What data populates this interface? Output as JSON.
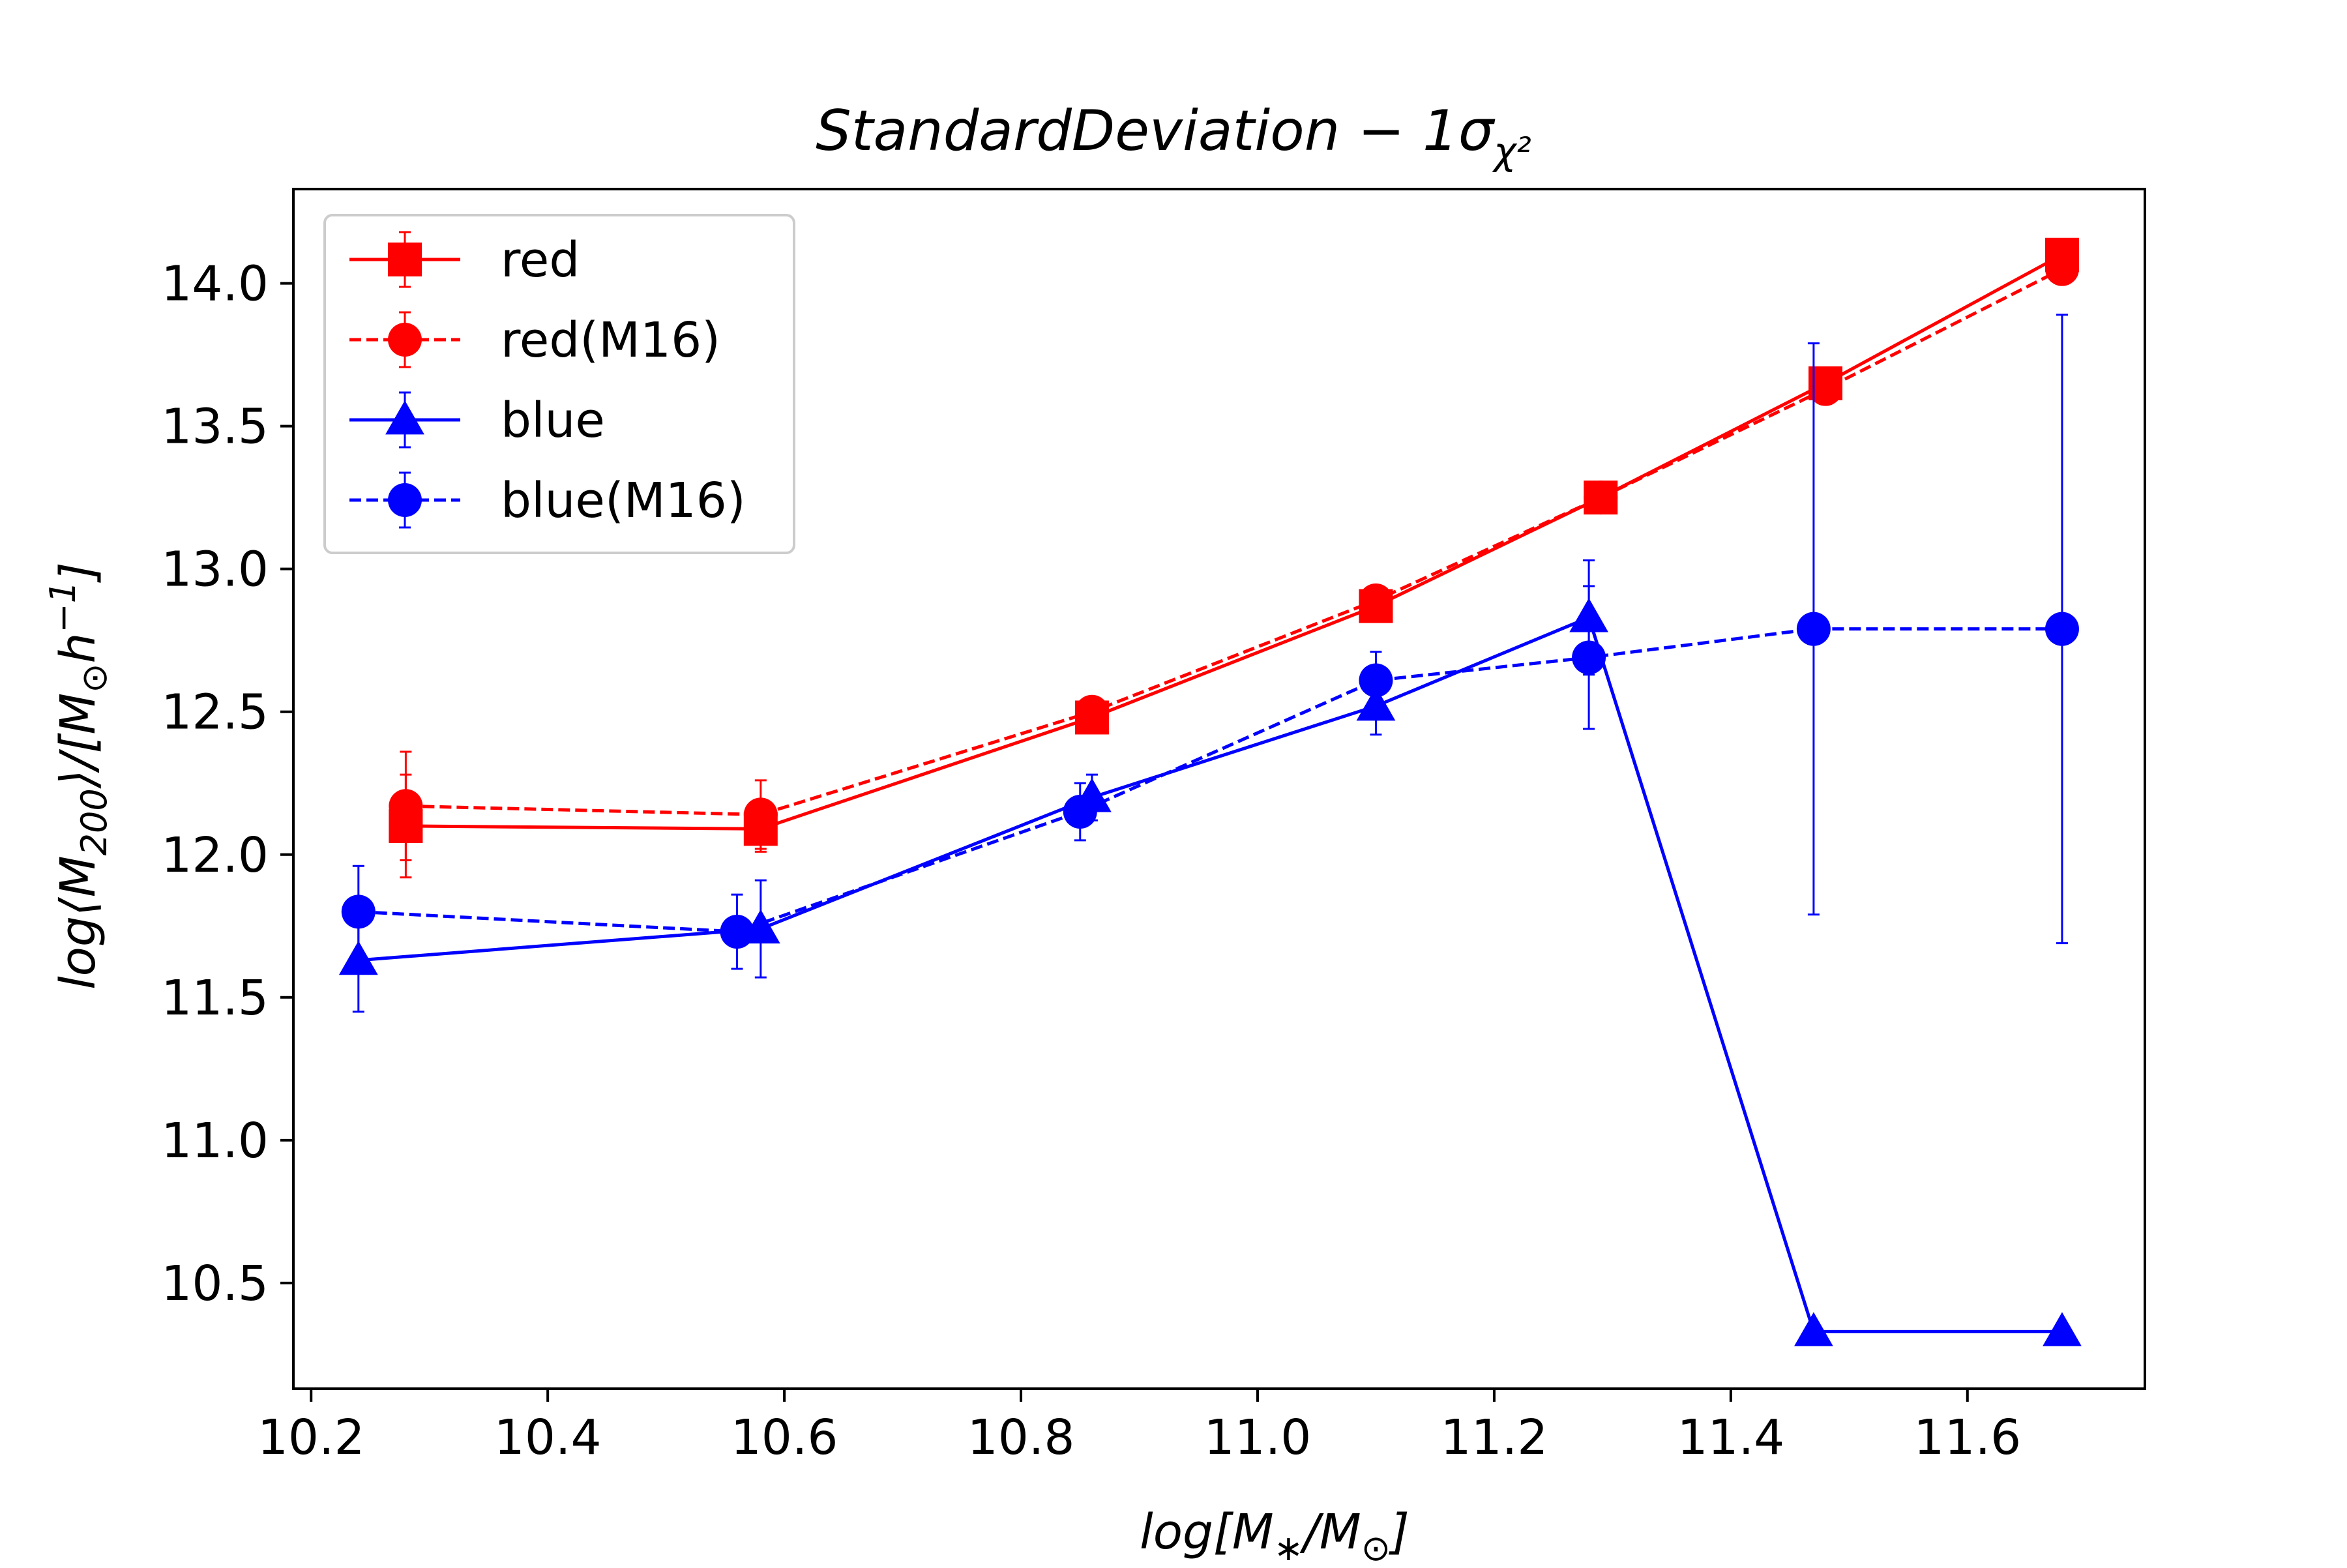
{
  "chart_data": {
    "type": "line",
    "title": "StandardDeviation − 1σ",
    "title_sub": "χ²",
    "xlabel": "log[M",
    "xlabel_sub1": "∗",
    "xlabel_mid": "/M",
    "xlabel_sub2": "⊙",
    "xlabel_end": "]",
    "ylabel": "log⟨M",
    "ylabel_sub": "200",
    "ylabel_mid": "⟩/[M",
    "ylabel_sub2": "⊙",
    "ylabel_mid2": "h",
    "ylabel_sup": "−1",
    "ylabel_end": "]",
    "xlim": [
      10.185,
      11.75
    ],
    "ylim": [
      10.13,
      14.33
    ],
    "xticks": [
      "10.2",
      "10.4",
      "10.6",
      "10.8",
      "11.0",
      "11.2",
      "11.4",
      "11.6"
    ],
    "yticks": [
      "10.5",
      "11.0",
      "11.5",
      "12.0",
      "12.5",
      "13.0",
      "13.5",
      "14.0"
    ],
    "grid": false,
    "legend_position": "top-left",
    "series": [
      {
        "name": "red",
        "color": "#ff0000",
        "linestyle": "solid",
        "marker": "square",
        "x": [
          10.28,
          10.58,
          10.86,
          11.1,
          11.29,
          11.48,
          11.68
        ],
        "y": [
          12.1,
          12.09,
          12.48,
          12.87,
          13.25,
          13.65,
          14.1
        ],
        "yerr": [
          0.18,
          0.08,
          0.03,
          0.03,
          0.02,
          0.02,
          0.02
        ]
      },
      {
        "name": "red(M16)",
        "color": "#ff0000",
        "linestyle": "dashed",
        "marker": "circle",
        "x": [
          10.28,
          10.58,
          10.86,
          11.1,
          11.29,
          11.48,
          11.68
        ],
        "y": [
          12.17,
          12.14,
          12.5,
          12.89,
          13.25,
          13.63,
          14.05
        ],
        "yerr": [
          0.19,
          0.12,
          0.03,
          0.03,
          0.02,
          0.02,
          0.02
        ]
      },
      {
        "name": "blue",
        "color": "#0000ff",
        "linestyle": "solid",
        "marker": "triangle",
        "x": [
          10.24,
          10.58,
          10.86,
          11.1,
          11.28,
          11.47,
          11.68
        ],
        "y": [
          11.63,
          11.74,
          12.2,
          12.52,
          12.83,
          10.33,
          10.33
        ],
        "yerr": [
          0.18,
          0.17,
          0.08,
          0.1,
          0.2,
          0,
          0
        ]
      },
      {
        "name": "blue(M16)",
        "color": "#0000ff",
        "linestyle": "dashed",
        "marker": "circle",
        "x": [
          10.24,
          10.56,
          10.85,
          11.1,
          11.28,
          11.47,
          11.68
        ],
        "y": [
          11.8,
          11.73,
          12.15,
          12.61,
          12.69,
          12.79,
          12.79
        ],
        "yerr": [
          0.16,
          0.13,
          0.1,
          0.1,
          0.25,
          1.0,
          1.1
        ]
      }
    ]
  }
}
